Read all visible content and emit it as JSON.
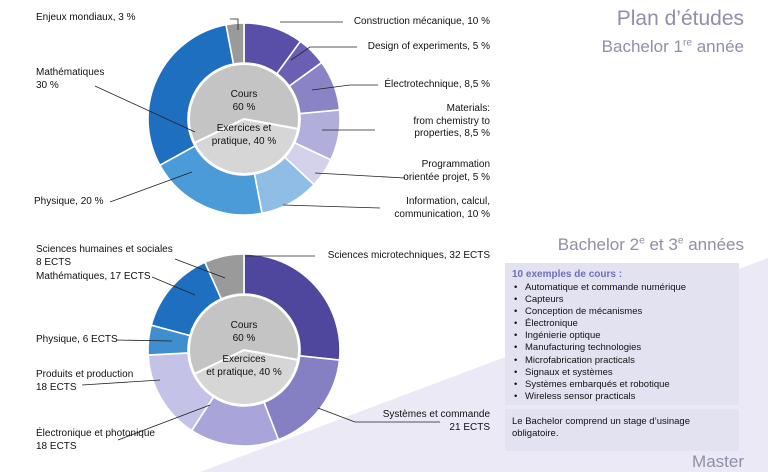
{
  "titles": {
    "plan": "Plan d’études",
    "year1_prefix": "Bachelor 1",
    "year1_sup": "re",
    "year1_suffix": " année",
    "years23_a": "Bachelor 2",
    "years23_sup1": "e",
    "years23_b": " et 3",
    "years23_sup2": "e",
    "years23_c": " années",
    "master": "Master"
  },
  "colors": {
    "band": "#ebe9f6",
    "box": "#e3e2f1",
    "box_heading": "#6f6fb8",
    "title": "#8f8fa8",
    "inner_fill": "#cdcdcd",
    "inner_fill_top": "#c4c4c4",
    "inner_fill_bottom": "#d6d6d6",
    "inner_border": "#ffffff"
  },
  "chart_data": [
    {
      "type": "pie",
      "title": "",
      "slices": [
        {
          "label": "Construction mécanique, 10 %",
          "value": 10,
          "color": "#5a4fa8",
          "key": "construction-mecanique"
        },
        {
          "label": "Design of experiments, 5 %",
          "value": 5,
          "color": "#6a5fb2",
          "key": "design-of-experiments"
        },
        {
          "label": "Électrotechnique, 8,5 %",
          "value": 8.5,
          "color": "#8a84c6",
          "key": "electrotechnique"
        },
        {
          "label": "Materials: from chemistry to properties, 8,5 %",
          "value": 8.5,
          "color": "#b2aedb",
          "key": "materials"
        },
        {
          "label": "Programmation orientée projet, 5 %",
          "value": 5,
          "color": "#d4d1ec",
          "key": "programmation"
        },
        {
          "label": "Information, calcul, communication, 10 %",
          "value": 10,
          "color": "#8fbde6",
          "key": "information-calcul"
        },
        {
          "label": "Physique, 20 %",
          "value": 20,
          "color": "#4b9bd8",
          "key": "physique"
        },
        {
          "label": "Mathématiques 30 %",
          "value": 30,
          "color": "#1e6fc0",
          "key": "mathematiques"
        },
        {
          "label": "Enjeux mondiaux, 3 %",
          "value": 3,
          "color": "#9a9a9a",
          "key": "enjeux-mondiaux"
        }
      ],
      "inner": [
        {
          "label": "Cours 60 %",
          "value": 60
        },
        {
          "label": "Exercices et pratique, 40 %",
          "value": 40
        }
      ]
    },
    {
      "type": "pie",
      "title": "",
      "slices": [
        {
          "label": "Sciences microtechniques, 32 ECTS",
          "value": 32,
          "color": "#4f479e",
          "key": "sciences-microtechniques"
        },
        {
          "label": "Systèmes et commande 21 ECTS",
          "value": 21,
          "color": "#8580c4",
          "key": "systemes-commande"
        },
        {
          "label": "Électronique et photonique 18 ECTS",
          "value": 18,
          "color": "#a9a4d9",
          "key": "electronique-photonique"
        },
        {
          "label": "Produits et production 18 ECTS",
          "value": 18,
          "color": "#c5c2e8",
          "key": "produits-production"
        },
        {
          "label": "Physique, 6 ECTS",
          "value": 6,
          "color": "#3f8fd0",
          "key": "physique"
        },
        {
          "label": "Mathématiques, 17 ECTS",
          "value": 17,
          "color": "#1e6fc0",
          "key": "mathematiques"
        },
        {
          "label": "Sciences humaines et sociales 8 ECTS",
          "value": 8,
          "color": "#9a9a9a",
          "key": "shs"
        }
      ],
      "inner": [
        {
          "label": "Cours 60 %",
          "value": 60
        },
        {
          "label": "Exercices et pratique, 40 %",
          "value": 40
        }
      ]
    }
  ],
  "chart1_labels": {
    "enjeux": "Enjeux mondiaux, 3 %",
    "math_1": "Mathématiques",
    "math_2": "30 %",
    "physique": "Physique, 20 %",
    "construction": "Construction mécanique, 10 %",
    "design": "Design of experiments, 5 %",
    "electro": "Électrotechnique, 8,5 %",
    "mat_1": "Materials:",
    "mat_2": "from chemistry to",
    "mat_3": "properties, 8,5 %",
    "prog_1": "Programmation",
    "prog_2": "orientée projet, 5 %",
    "info_1": "Information, calcul,",
    "info_2": "communication, 10 %",
    "cours_1": "Cours",
    "cours_2": "60 %",
    "ex_1": "Exercices et",
    "ex_2": "pratique, 40 %"
  },
  "chart2_labels": {
    "shs_1": "Sciences humaines et sociales",
    "shs_2": "8 ECTS",
    "math": "Mathématiques, 17 ECTS",
    "physique": "Physique, 6 ECTS",
    "prod_1": "Produits et production",
    "prod_2": "18 ECTS",
    "elec_1": "Électronique et photonique",
    "elec_2": "18 ECTS",
    "micro": "Sciences microtechniques, 32 ECTS",
    "sys_1": "Systèmes et commande",
    "sys_2": "21 ECTS",
    "cours_1": "Cours",
    "cours_2": "60 %",
    "ex_1": "Exercices",
    "ex_2": "et pratique, 40 %"
  },
  "courses": {
    "heading": "10 exemples de cours :",
    "items": [
      "Automatique et commande numérique",
      "Capteurs",
      "Conception de mécanismes",
      "Électronique",
      "Ingénierie optique",
      "Manufacturing technologies",
      "Microfabrication practicals",
      "Signaux et systèmes",
      "Systèmes embarqués et robotique",
      "Wireless sensor practicals"
    ]
  },
  "note": "Le Bachelor comprend un stage d’usinage obligatoire."
}
